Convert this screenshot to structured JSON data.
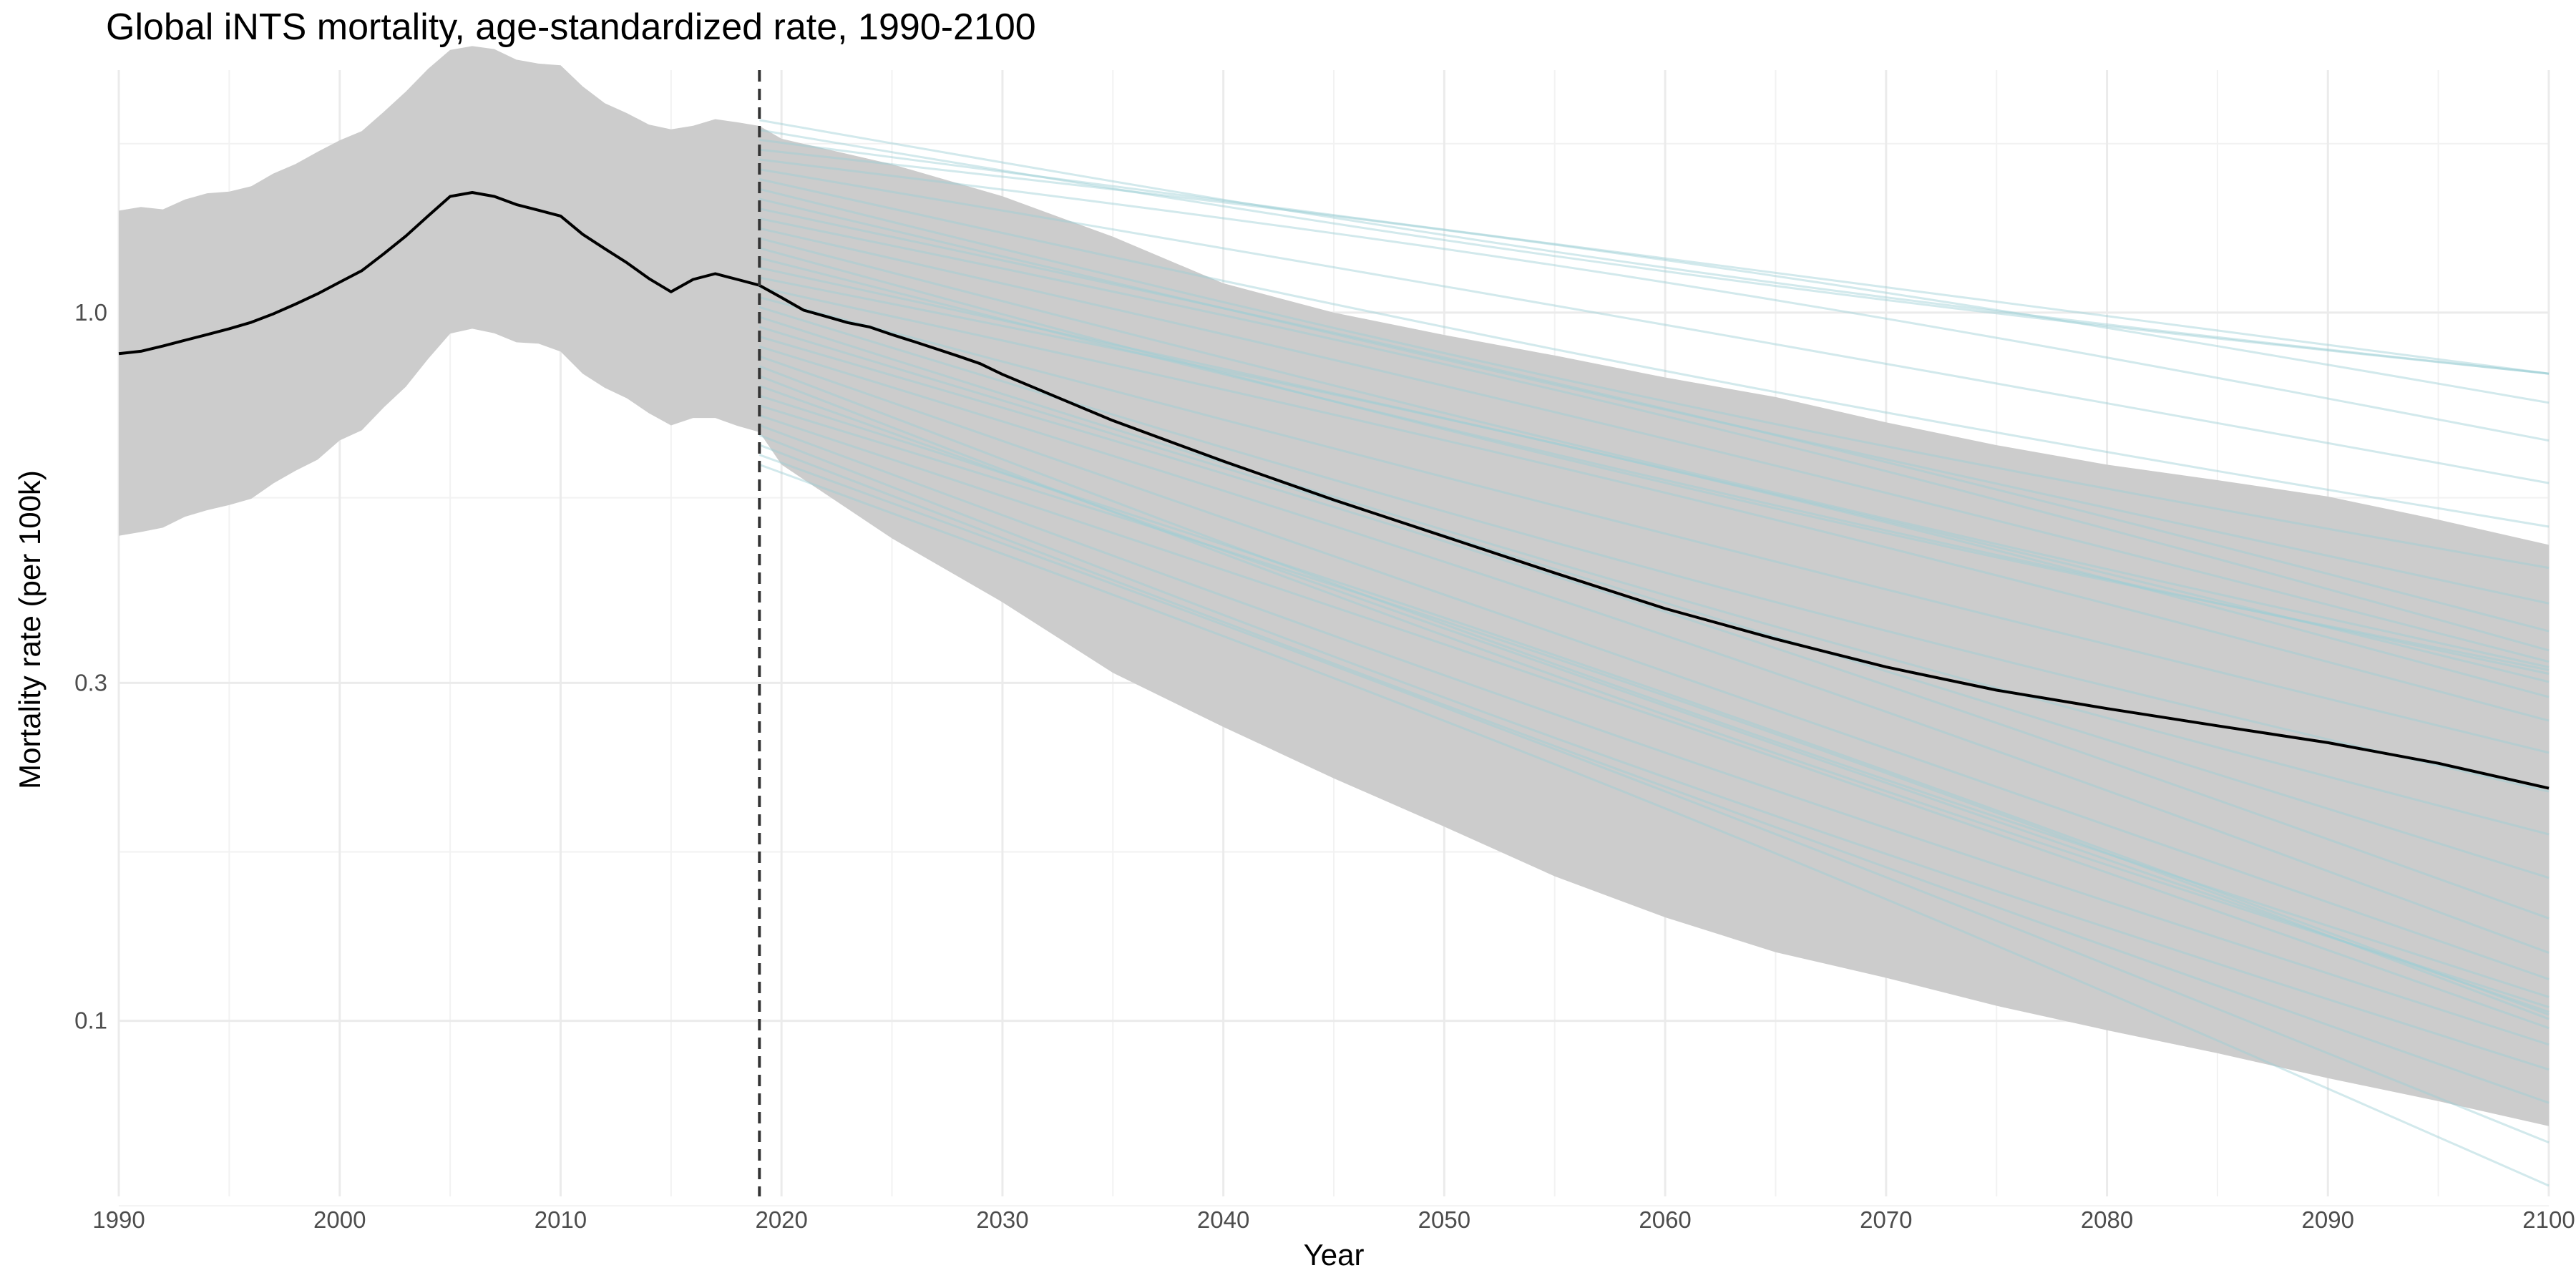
{
  "chart_data": {
    "type": "line",
    "title": "Global iNTS mortality, age-standardized rate, 1990-2100",
    "xlabel": "Year",
    "ylabel": "Mortality rate (per 100k)",
    "x_range": [
      1990,
      2100
    ],
    "y_scale": "log10",
    "y_range": [
      0.0565,
      2.2
    ],
    "x_ticks": [
      "1990",
      "2000",
      "2010",
      "2020",
      "2030",
      "2040",
      "2050",
      "2060",
      "2070",
      "2080",
      "2090",
      "2100"
    ],
    "y_ticks": [
      "0.1",
      "0.3",
      "1.0"
    ],
    "y_tick_values": [
      0.1,
      0.3,
      1.0
    ],
    "y_minor_values": [
      0.0548,
      0.1732,
      0.5477,
      1.7321
    ],
    "grid": true,
    "forecast_start_year": 2019,
    "colors": {
      "mean_line": "#000000",
      "uncertainty_band": "#cccccc",
      "draw_lines": "#9ccfd4",
      "forecast_marker": "#333333"
    },
    "series": [
      {
        "role": "mean",
        "x": [
          1990,
          1991,
          1992,
          1993,
          1994,
          1995,
          1996,
          1997,
          1998,
          1999,
          2000,
          2001,
          2002,
          2003,
          2004,
          2005,
          2006,
          2007,
          2008,
          2009,
          2010,
          2011,
          2012,
          2013,
          2014,
          2015,
          2016,
          2017,
          2018,
          2019,
          2020,
          2021,
          2022,
          2023,
          2024,
          2025,
          2026,
          2027,
          2028,
          2029,
          2030,
          2035,
          2040,
          2045,
          2050,
          2055,
          2060,
          2065,
          2070,
          2075,
          2080,
          2085,
          2090,
          2095,
          2100
        ],
        "y": [
          0.875,
          0.882,
          0.897,
          0.914,
          0.931,
          0.949,
          0.969,
          0.996,
          1.028,
          1.063,
          1.104,
          1.146,
          1.211,
          1.283,
          1.369,
          1.459,
          1.478,
          1.459,
          1.421,
          1.395,
          1.369,
          1.29,
          1.231,
          1.176,
          1.117,
          1.07,
          1.114,
          1.135,
          1.114,
          1.093,
          1.05,
          1.008,
          0.988,
          0.968,
          0.954,
          0.931,
          0.91,
          0.889,
          0.868,
          0.847,
          0.818,
          0.704,
          0.617,
          0.544,
          0.483,
          0.429,
          0.382,
          0.346,
          0.316,
          0.293,
          0.276,
          0.261,
          0.247,
          0.231,
          0.213
        ]
      },
      {
        "role": "uncertainty_upper",
        "x": [
          1990,
          1991,
          1992,
          1993,
          1994,
          1995,
          1996,
          1997,
          1998,
          1999,
          2000,
          2001,
          2002,
          2003,
          2004,
          2005,
          2006,
          2007,
          2008,
          2009,
          2010,
          2011,
          2012,
          2013,
          2014,
          2015,
          2016,
          2017,
          2018,
          2019,
          2020,
          2025,
          2030,
          2035,
          2040,
          2045,
          2050,
          2055,
          2060,
          2065,
          2070,
          2075,
          2080,
          2085,
          2090,
          2095,
          2100
        ],
        "y": [
          1.393,
          1.41,
          1.399,
          1.445,
          1.474,
          1.482,
          1.508,
          1.572,
          1.621,
          1.687,
          1.751,
          1.804,
          1.922,
          2.052,
          2.209,
          2.349,
          2.379,
          2.356,
          2.276,
          2.247,
          2.235,
          2.087,
          1.976,
          1.913,
          1.843,
          1.815,
          1.836,
          1.876,
          1.857,
          1.835,
          1.76,
          1.62,
          1.46,
          1.28,
          1.1,
          1.0,
          0.93,
          0.87,
          0.81,
          0.76,
          0.7,
          0.65,
          0.61,
          0.58,
          0.55,
          0.51,
          0.47
        ]
      },
      {
        "role": "uncertainty_lower",
        "x": [
          1990,
          1991,
          1992,
          1993,
          1994,
          1995,
          1996,
          1997,
          1998,
          1999,
          2000,
          2001,
          2002,
          2003,
          2004,
          2005,
          2006,
          2007,
          2008,
          2009,
          2010,
          2011,
          2012,
          2013,
          2014,
          2015,
          2016,
          2017,
          2018,
          2019,
          2020,
          2025,
          2030,
          2035,
          2040,
          2045,
          2050,
          2055,
          2060,
          2065,
          2070,
          2075,
          2080,
          2085,
          2090,
          2095,
          2100
        ],
        "y": [
          0.484,
          0.49,
          0.497,
          0.515,
          0.526,
          0.535,
          0.546,
          0.574,
          0.598,
          0.62,
          0.66,
          0.682,
          0.735,
          0.786,
          0.86,
          0.934,
          0.949,
          0.935,
          0.908,
          0.904,
          0.881,
          0.82,
          0.783,
          0.757,
          0.721,
          0.693,
          0.71,
          0.71,
          0.692,
          0.678,
          0.61,
          0.48,
          0.39,
          0.31,
          0.26,
          0.22,
          0.188,
          0.16,
          0.14,
          0.125,
          0.115,
          0.105,
          0.097,
          0.09,
          0.083,
          0.077,
          0.071
        ]
      }
    ],
    "draws": {
      "count": 36,
      "x_start": 2019,
      "x_end": 2100,
      "y_start_range": [
        0.61,
        1.87
      ],
      "y_end_range": [
        0.0585,
        0.82
      ]
    }
  }
}
